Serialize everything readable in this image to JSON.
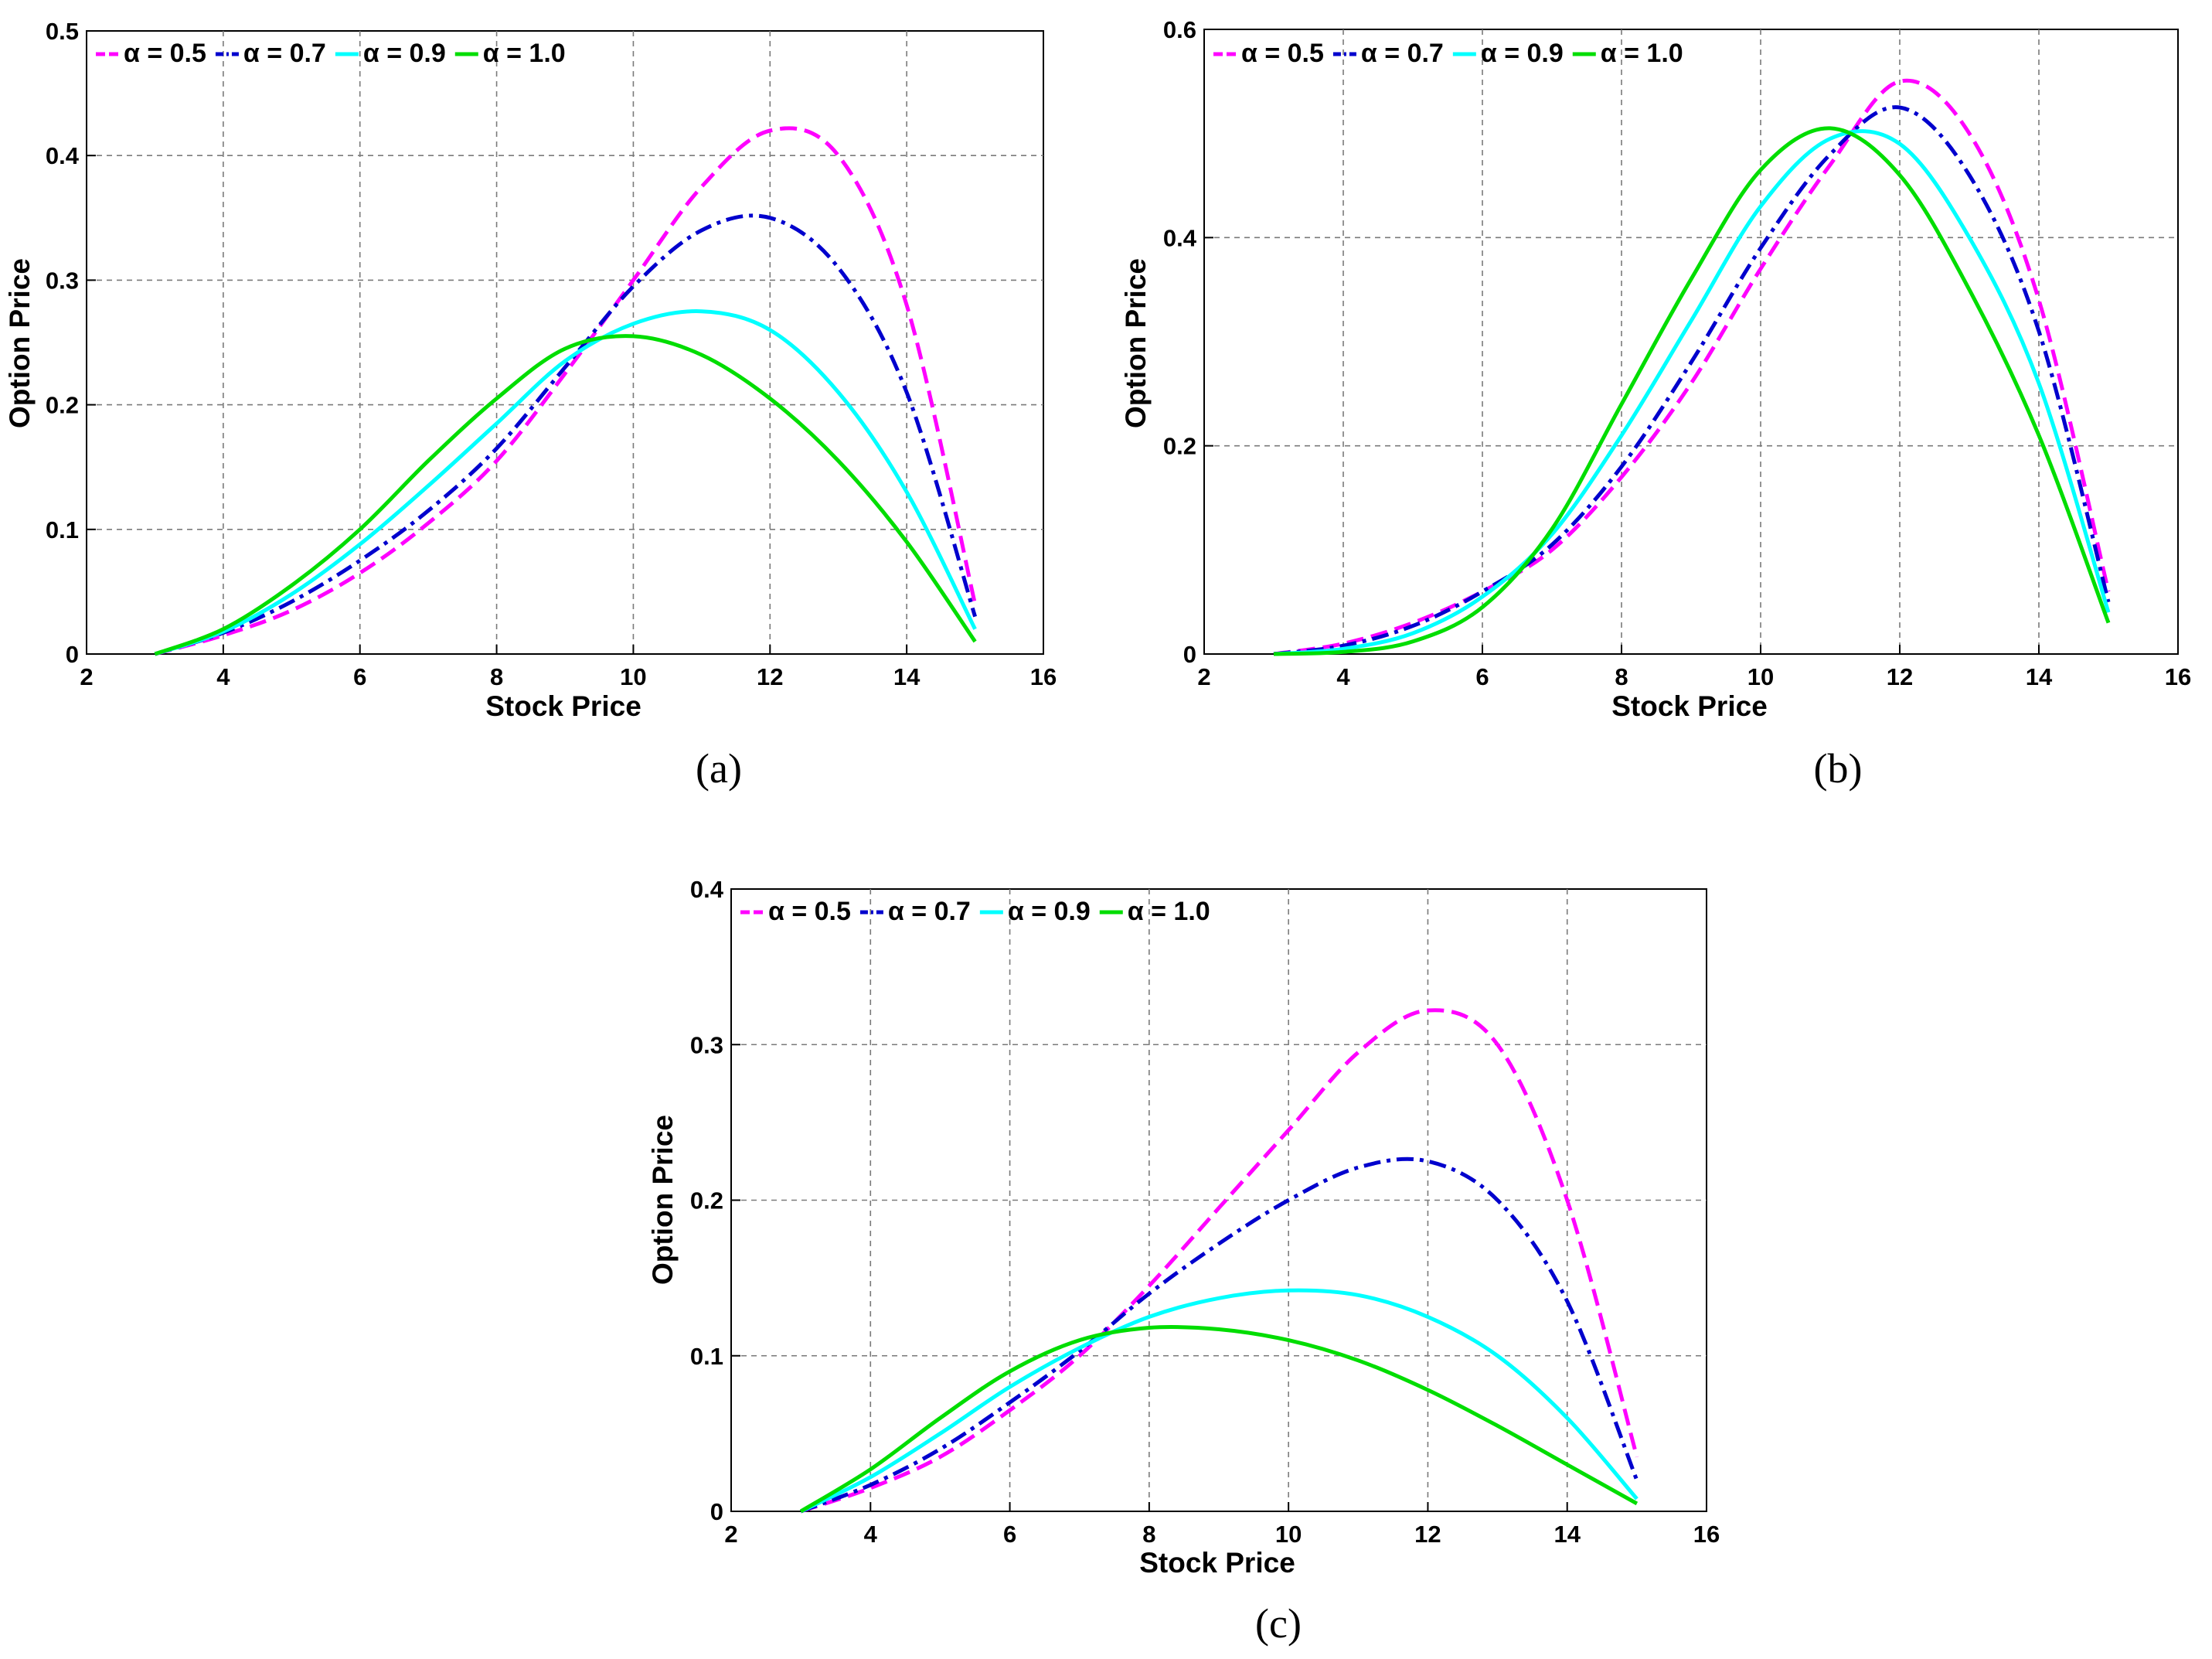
{
  "figure": {
    "captions": [
      "(a)",
      "(b)",
      "(c)"
    ]
  },
  "legend_order": [
    "α = 0.5",
    "α = 0.7",
    "α = 0.9",
    "α = 1.0"
  ],
  "series_style": {
    "α = 0.5": {
      "color": "#ff00ff",
      "dash": "dashed"
    },
    "α = 0.7": {
      "color": "#0000cd",
      "dash": "dash-dot"
    },
    "α = 0.9": {
      "color": "#00ffff",
      "dash": "solid"
    },
    "α = 1.0": {
      "color": "#00dd00",
      "dash": "solid"
    }
  },
  "chart_data": [
    {
      "type": "line",
      "caption": "(a)",
      "xlabel": "Stock Price",
      "ylabel": "Option Price",
      "xlim": [
        2,
        16
      ],
      "ylim": [
        0,
        0.5
      ],
      "xticks": [
        "2",
        "4",
        "6",
        "8",
        "10",
        "12",
        "14",
        "16"
      ],
      "yticks": [
        "0",
        "0.1",
        "0.2",
        "0.3",
        "0.4",
        "0.5"
      ],
      "grid": true,
      "legend": "top-left",
      "x": [
        3,
        4,
        5,
        6,
        7,
        8,
        9,
        10,
        11,
        12,
        13,
        14,
        15
      ],
      "series": [
        {
          "name": "α = 0.5",
          "values": [
            0,
            0.015,
            0.035,
            0.065,
            0.105,
            0.155,
            0.225,
            0.3,
            0.375,
            0.42,
            0.4,
            0.28,
            0.04
          ]
        },
        {
          "name": "α = 0.7",
          "values": [
            0,
            0.017,
            0.042,
            0.075,
            0.115,
            0.165,
            0.23,
            0.295,
            0.34,
            0.35,
            0.31,
            0.21,
            0.03
          ]
        },
        {
          "name": "α = 0.9",
          "values": [
            0,
            0.018,
            0.048,
            0.088,
            0.135,
            0.185,
            0.235,
            0.265,
            0.275,
            0.26,
            0.21,
            0.13,
            0.02
          ]
        },
        {
          "name": "α = 1.0",
          "values": [
            0,
            0.02,
            0.055,
            0.1,
            0.155,
            0.205,
            0.245,
            0.255,
            0.24,
            0.205,
            0.155,
            0.09,
            0.01
          ]
        }
      ]
    },
    {
      "type": "line",
      "caption": "(b)",
      "xlabel": "Stock Price",
      "ylabel": "Option Price",
      "xlim": [
        2,
        16
      ],
      "ylim": [
        0,
        0.6
      ],
      "xticks": [
        "2",
        "4",
        "6",
        "8",
        "10",
        "12",
        "14",
        "16"
      ],
      "yticks": [
        "0",
        "0.2",
        "0.4",
        "0.6"
      ],
      "grid": true,
      "legend": "top-left",
      "x": [
        3,
        4,
        5,
        6,
        7,
        8,
        9,
        10,
        11,
        12,
        13,
        14,
        15
      ],
      "series": [
        {
          "name": "α = 0.5",
          "values": [
            0,
            0.01,
            0.03,
            0.06,
            0.1,
            0.17,
            0.26,
            0.37,
            0.47,
            0.55,
            0.5,
            0.34,
            0.06
          ]
        },
        {
          "name": "α = 0.7",
          "values": [
            0,
            0.008,
            0.027,
            0.06,
            0.105,
            0.18,
            0.28,
            0.39,
            0.48,
            0.525,
            0.46,
            0.31,
            0.05
          ]
        },
        {
          "name": "α = 0.9",
          "values": [
            0,
            0.005,
            0.02,
            0.055,
            0.115,
            0.21,
            0.32,
            0.43,
            0.495,
            0.49,
            0.4,
            0.26,
            0.04
          ]
        },
        {
          "name": "α = 1.0",
          "values": [
            0,
            0.002,
            0.012,
            0.045,
            0.12,
            0.24,
            0.36,
            0.465,
            0.505,
            0.46,
            0.35,
            0.21,
            0.03
          ]
        }
      ]
    },
    {
      "type": "line",
      "caption": "(c)",
      "xlabel": "Stock Price",
      "ylabel": "Option Price",
      "xlim": [
        2,
        16
      ],
      "ylim": [
        0,
        0.4
      ],
      "xticks": [
        "2",
        "4",
        "6",
        "8",
        "10",
        "12",
        "14",
        "16"
      ],
      "yticks": [
        "0",
        "0.1",
        "0.2",
        "0.3",
        "0.4"
      ],
      "grid": true,
      "legend": "top-left",
      "x": [
        3,
        4,
        5,
        6,
        7,
        8,
        9,
        10,
        11,
        12,
        13,
        14,
        15
      ],
      "series": [
        {
          "name": "α = 0.5",
          "values": [
            0,
            0.015,
            0.035,
            0.065,
            0.1,
            0.145,
            0.195,
            0.245,
            0.295,
            0.322,
            0.3,
            0.2,
            0.035
          ]
        },
        {
          "name": "α = 0.7",
          "values": [
            0,
            0.017,
            0.04,
            0.07,
            0.103,
            0.14,
            0.172,
            0.2,
            0.221,
            0.225,
            0.2,
            0.135,
            0.02
          ]
        },
        {
          "name": "α = 0.9",
          "values": [
            0,
            0.022,
            0.05,
            0.08,
            0.105,
            0.125,
            0.137,
            0.142,
            0.139,
            0.125,
            0.1,
            0.06,
            0.008
          ]
        },
        {
          "name": "α = 1.0",
          "values": [
            0,
            0.027,
            0.06,
            0.09,
            0.11,
            0.118,
            0.117,
            0.11,
            0.097,
            0.078,
            0.055,
            0.03,
            0.005
          ]
        }
      ]
    }
  ]
}
